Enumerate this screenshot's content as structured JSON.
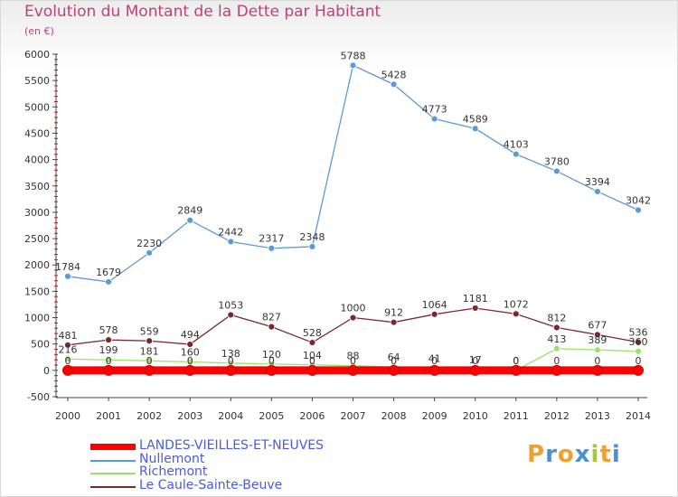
{
  "header": {
    "title": "Evolution du Montant de la Dette par Habitant",
    "unit": "(en €)"
  },
  "logo": {
    "text": "Proxiti"
  },
  "chart_data": {
    "type": "line",
    "title": "Evolution du Montant de la Dette par Habitant",
    "subtitle": "(en €)",
    "x": [
      2000,
      2001,
      2002,
      2003,
      2004,
      2005,
      2006,
      2007,
      2008,
      2009,
      2010,
      2011,
      2012,
      2013,
      2014
    ],
    "ylim": [
      -500,
      6000
    ],
    "yticks": [
      -500,
      0,
      500,
      1000,
      1500,
      2000,
      2500,
      3000,
      3500,
      4000,
      4500,
      5000,
      5500,
      6000
    ],
    "grid": false,
    "legend_position": "bottom-left",
    "series": [
      {
        "name": "LANDES-VIEILLES-ET-NEUVES",
        "color": "#ff0000",
        "values": [
          0,
          0,
          0,
          0,
          0,
          0,
          0,
          0,
          0,
          0,
          0,
          0,
          0,
          0,
          0
        ],
        "labels": [
          0,
          0,
          0,
          0,
          0,
          0,
          0,
          0,
          0,
          0,
          0,
          0,
          0,
          0,
          0
        ]
      },
      {
        "name": "Nullemont",
        "color": "#5b9bd5",
        "values": [
          1784,
          1679,
          2230,
          2849,
          2442,
          2317,
          2348,
          5788,
          5428,
          4773,
          4589,
          4103,
          3780,
          3394,
          3042
        ]
      },
      {
        "name": "Richemont",
        "color": "#9be26a",
        "values": [
          216,
          199,
          181,
          160,
          138,
          120,
          104,
          88,
          64,
          41,
          17,
          0,
          413,
          389,
          360
        ]
      },
      {
        "name": "Le Caule-Sainte-Beuve",
        "color": "#7a2830",
        "values": [
          481,
          578,
          559,
          494,
          1053,
          827,
          528,
          1000,
          912,
          1064,
          1181,
          1072,
          812,
          677,
          536
        ]
      }
    ]
  }
}
